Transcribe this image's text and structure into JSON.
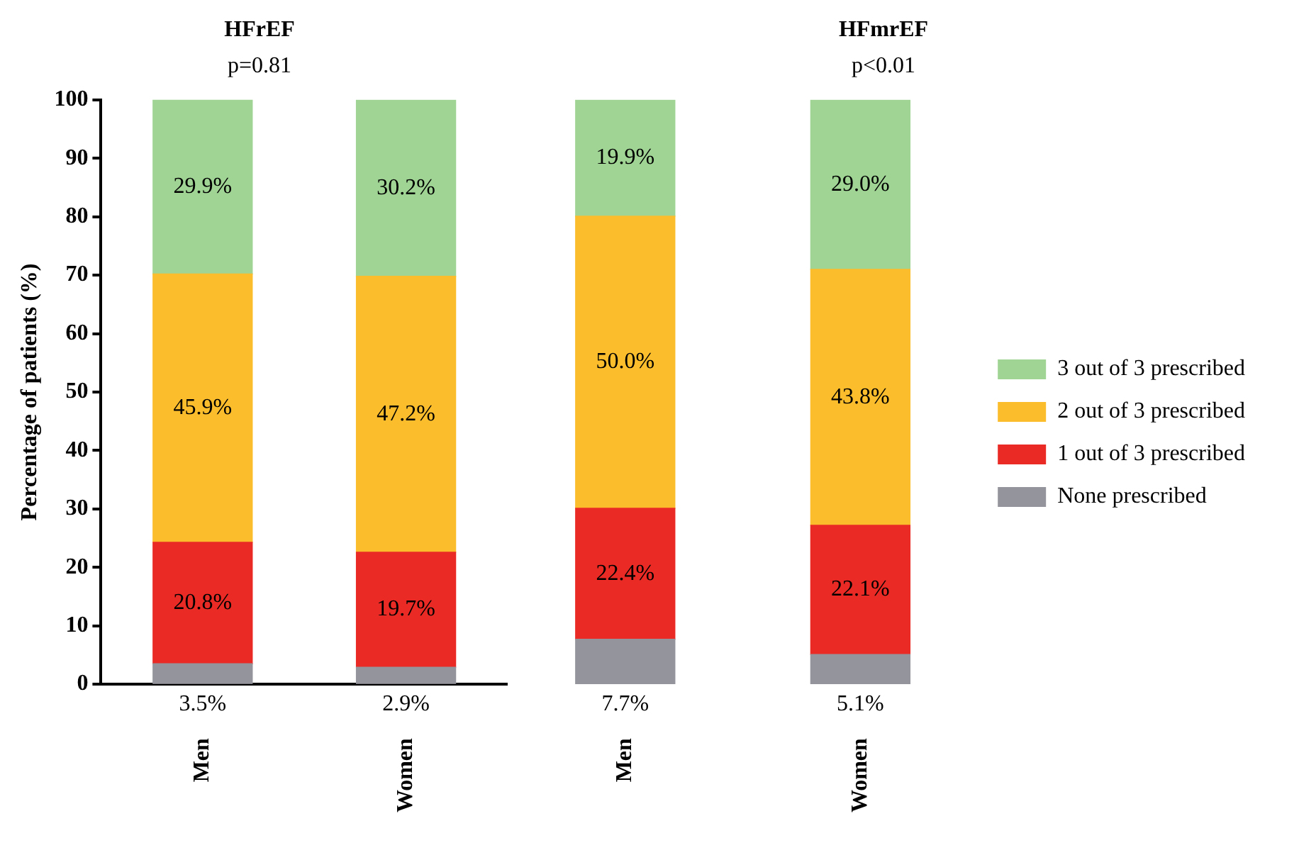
{
  "chart_data": [
    {
      "type": "bar",
      "title": "HFrEF",
      "subtitle": "p=0.81",
      "ylabel": "Percentage of patients (%)",
      "categories": [
        "Men",
        "Women"
      ],
      "stacked": true,
      "ylim": [
        0,
        100
      ],
      "yticks": [
        0,
        10,
        20,
        30,
        40,
        50,
        60,
        70,
        80,
        90,
        100
      ],
      "grid": false,
      "legend": false,
      "series": [
        {
          "color": "#94949c",
          "values": [
            3.5,
            2.9
          ],
          "value_labels": [
            "3.5%",
            "2.9%"
          ]
        },
        {
          "color": "#ea2a24",
          "values": [
            20.8,
            19.7
          ],
          "value_labels": [
            "20.8%",
            "19.7%"
          ]
        },
        {
          "color": "#fbbd2c",
          "values": [
            45.9,
            47.2
          ],
          "value_labels": [
            "45.9%",
            "47.2%"
          ]
        },
        {
          "color": "#9fd494",
          "values": [
            29.9,
            30.2
          ],
          "value_labels": [
            "29.9%",
            "30.2%"
          ]
        }
      ]
    },
    {
      "type": "bar",
      "title": "HFmrEF",
      "subtitle": "p<0.01",
      "categories": [
        "Men",
        "Women"
      ],
      "stacked": true,
      "ylim": [
        0,
        100
      ],
      "yticks": [
        0,
        10,
        20,
        30,
        40,
        50,
        60,
        70,
        80,
        90,
        100
      ],
      "tick_labels": "x",
      "grid": false,
      "legend": "right",
      "series": [
        {
          "name": "None prescribed",
          "color": "#94949c",
          "values": [
            7.7,
            5.1
          ],
          "value_labels": [
            "7.7%",
            "5.1%"
          ]
        },
        {
          "name": "1 out of 3 prescribed",
          "color": "#ea2a24",
          "values": [
            22.4,
            22.1
          ],
          "value_labels": [
            "22.4%",
            "22.1%"
          ]
        },
        {
          "name": "2 out of 3 prescribed",
          "color": "#fbbd2c",
          "values": [
            50.0,
            43.8
          ],
          "value_labels": [
            "50.0%",
            "43.8%"
          ]
        },
        {
          "name": "3 out of 3 prescribed",
          "color": "#9fd494",
          "values": [
            19.9,
            29.0
          ],
          "value_labels": [
            "19.9%",
            "29.0%"
          ]
        }
      ]
    }
  ]
}
